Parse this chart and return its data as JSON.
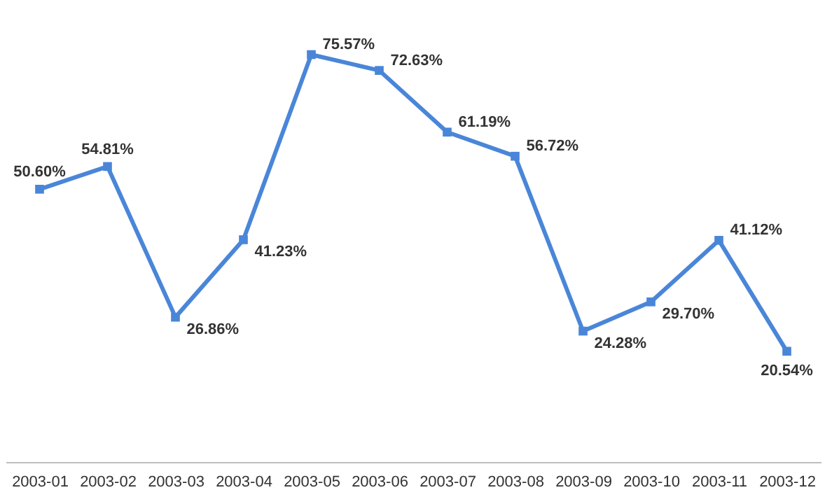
{
  "chart_data": {
    "type": "line",
    "categories": [
      "2003-01",
      "2003-02",
      "2003-03",
      "2003-04",
      "2003-05",
      "2003-06",
      "2003-07",
      "2003-08",
      "2003-09",
      "2003-10",
      "2003-11",
      "2003-12"
    ],
    "series": [
      {
        "color": "#4a86d8",
        "values": [
          50.6,
          54.81,
          26.86,
          41.23,
          75.57,
          72.63,
          61.19,
          56.72,
          24.28,
          29.7,
          41.12,
          20.54
        ],
        "value_labels": [
          "50.60%",
          "54.81%",
          "26.86%",
          "41.23%",
          "75.57%",
          "72.63%",
          "61.19%",
          "56.72%",
          "24.28%",
          "29.70%",
          "41.12%",
          "20.54%"
        ]
      }
    ],
    "marker": "square",
    "line_style": "solid",
    "grid": false,
    "legend": false,
    "tick_labels": "x"
  }
}
